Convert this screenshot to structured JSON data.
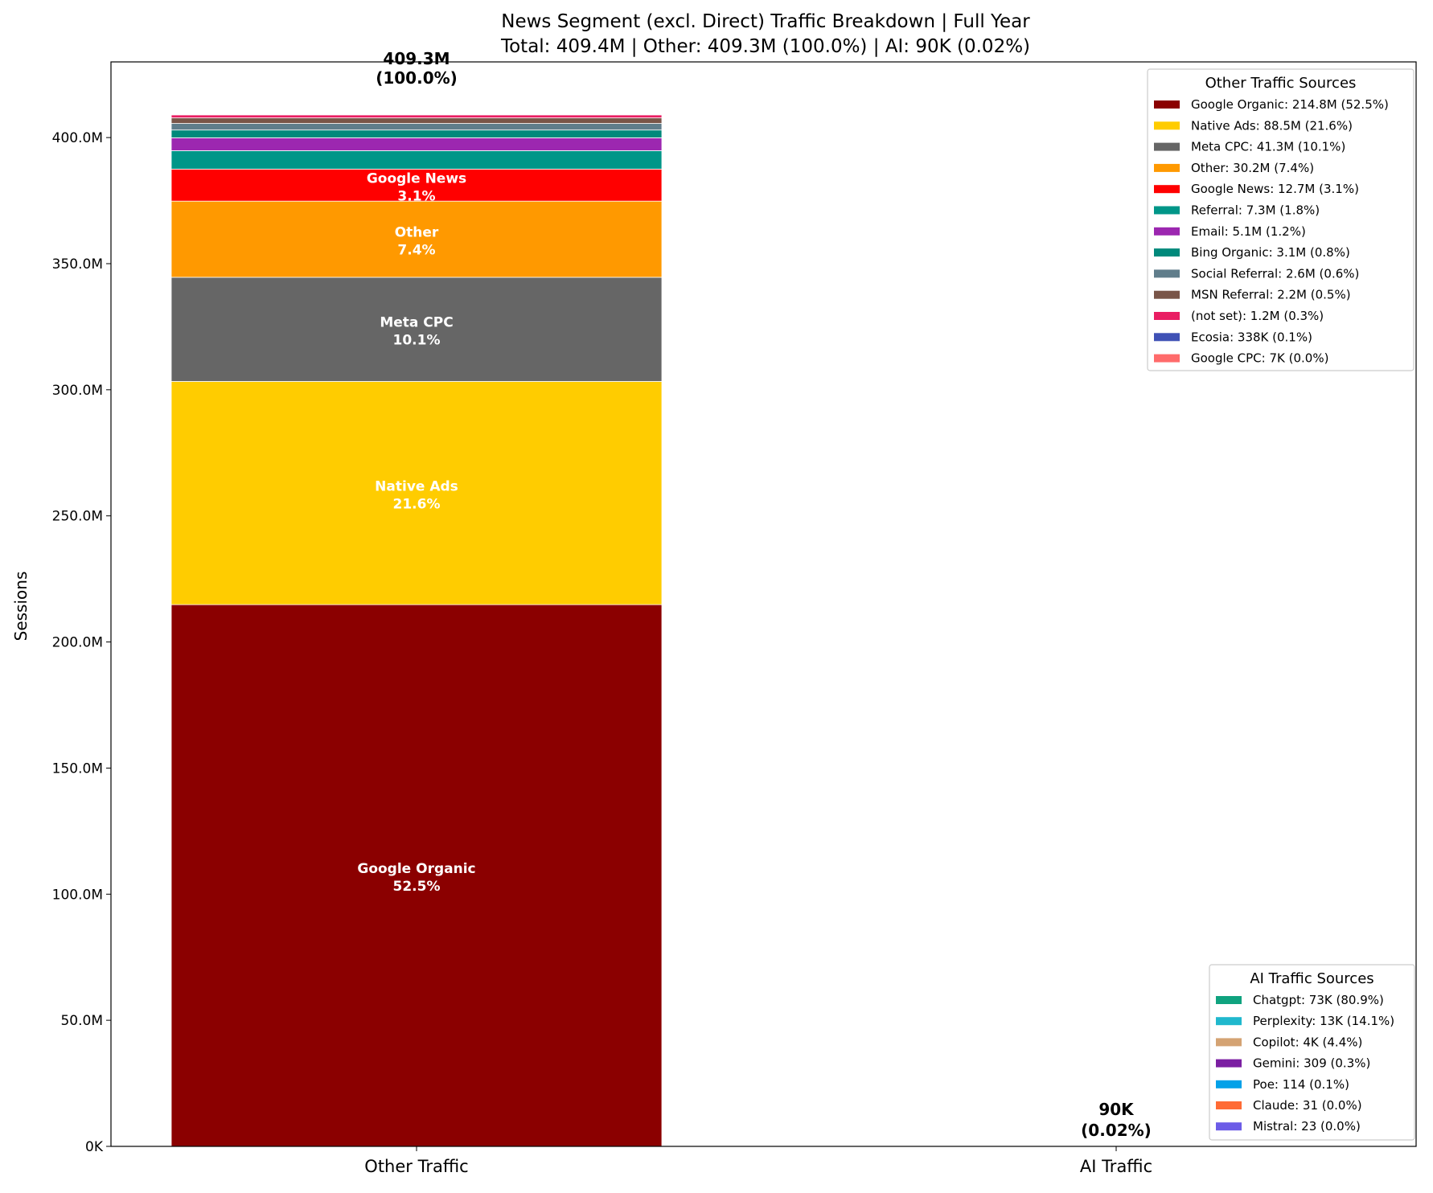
{
  "chart_data": {
    "type": "bar",
    "stacked": true,
    "title": "News Segment (excl. Direct) Traffic Breakdown | Full Year",
    "subtitle": "Total: 409.4M | Other: 409.3M (100.0%) | AI: 90K (0.02%)",
    "xlabel": "",
    "ylabel": "Sessions",
    "ylim": [
      0,
      430000000
    ],
    "yticks": [
      0,
      50000000,
      100000000,
      150000000,
      200000000,
      250000000,
      300000000,
      350000000,
      400000000
    ],
    "ytick_labels": [
      "0K",
      "50.0M",
      "100.0M",
      "150.0M",
      "200.0M",
      "250.0M",
      "300.0M",
      "350.0M",
      "400.0M"
    ],
    "categories": [
      "Other Traffic",
      "AI Traffic"
    ],
    "totals": [
      {
        "label": "409.3M",
        "pct": "(100.0%)",
        "value": 409300000
      },
      {
        "label": "90K",
        "pct": "(0.02%)",
        "value": 90000
      }
    ],
    "grid": false,
    "other_series": [
      {
        "name": "Google Organic",
        "value": 214800000,
        "pct": "52.5%",
        "legend": "Google Organic: 214.8M (52.5%)",
        "color": "#8b0000"
      },
      {
        "name": "Native Ads",
        "value": 88500000,
        "pct": "21.6%",
        "legend": "Native Ads: 88.5M (21.6%)",
        "color": "#ffcc00"
      },
      {
        "name": "Meta CPC",
        "value": 41300000,
        "pct": "10.1%",
        "legend": "Meta CPC: 41.3M (10.1%)",
        "color": "#666666"
      },
      {
        "name": "Other",
        "value": 30200000,
        "pct": "7.4%",
        "legend": "Other: 30.2M (7.4%)",
        "color": "#ff9900"
      },
      {
        "name": "Google News",
        "value": 12700000,
        "pct": "3.1%",
        "legend": "Google News: 12.7M (3.1%)",
        "color": "#ff0000"
      },
      {
        "name": "Referral",
        "value": 7300000,
        "pct": "1.8%",
        "legend": "Referral: 7.3M (1.8%)",
        "color": "#009688"
      },
      {
        "name": "Email",
        "value": 5100000,
        "pct": "1.2%",
        "legend": "Email: 5.1M (1.2%)",
        "color": "#9c27b0"
      },
      {
        "name": "Bing Organic",
        "value": 3100000,
        "pct": "0.8%",
        "legend": "Bing Organic: 3.1M (0.8%)",
        "color": "#00897b"
      },
      {
        "name": "Social Referral",
        "value": 2600000,
        "pct": "0.6%",
        "legend": "Social Referral: 2.6M (0.6%)",
        "color": "#607d8b"
      },
      {
        "name": "MSN Referral",
        "value": 2200000,
        "pct": "0.5%",
        "legend": "MSN Referral: 2.2M (0.5%)",
        "color": "#795548"
      },
      {
        "name": "(not set)",
        "value": 1200000,
        "pct": "0.3%",
        "legend": "(not set): 1.2M (0.3%)",
        "color": "#e91e63"
      },
      {
        "name": "Ecosia",
        "value": 338000,
        "pct": "0.1%",
        "legend": "Ecosia: 338K (0.1%)",
        "color": "#3f51b5"
      },
      {
        "name": "Google CPC",
        "value": 7000,
        "pct": "0.0%",
        "legend": "Google CPC: 7K (0.0%)",
        "color": "#ff6b6b"
      }
    ],
    "ai_series": [
      {
        "name": "Chatgpt",
        "value": 73000,
        "pct": "80.9%",
        "legend": "Chatgpt: 73K (80.9%)",
        "color": "#10a37f"
      },
      {
        "name": "Perplexity",
        "value": 13000,
        "pct": "14.1%",
        "legend": "Perplexity: 13K (14.1%)",
        "color": "#20b8cd"
      },
      {
        "name": "Copilot",
        "value": 4000,
        "pct": "4.4%",
        "legend": "Copilot: 4K (4.4%)",
        "color": "#d4a373"
      },
      {
        "name": "Gemini",
        "value": 309,
        "pct": "0.3%",
        "legend": "Gemini: 309 (0.3%)",
        "color": "#7b1fa2"
      },
      {
        "name": "Poe",
        "value": 114,
        "pct": "0.1%",
        "legend": "Poe: 114 (0.1%)",
        "color": "#03a1e8"
      },
      {
        "name": "Claude",
        "value": 31,
        "pct": "0.0%",
        "legend": "Claude: 31 (0.0%)",
        "color": "#ff6b35"
      },
      {
        "name": "Mistral",
        "value": 23,
        "pct": "0.0%",
        "legend": "Mistral: 23 (0.0%)",
        "color": "#6c5ce7"
      }
    ],
    "legends": [
      {
        "title": "Other Traffic Sources",
        "placement": "upper-right"
      },
      {
        "title": "AI Traffic Sources",
        "placement": "lower-right"
      }
    ]
  }
}
